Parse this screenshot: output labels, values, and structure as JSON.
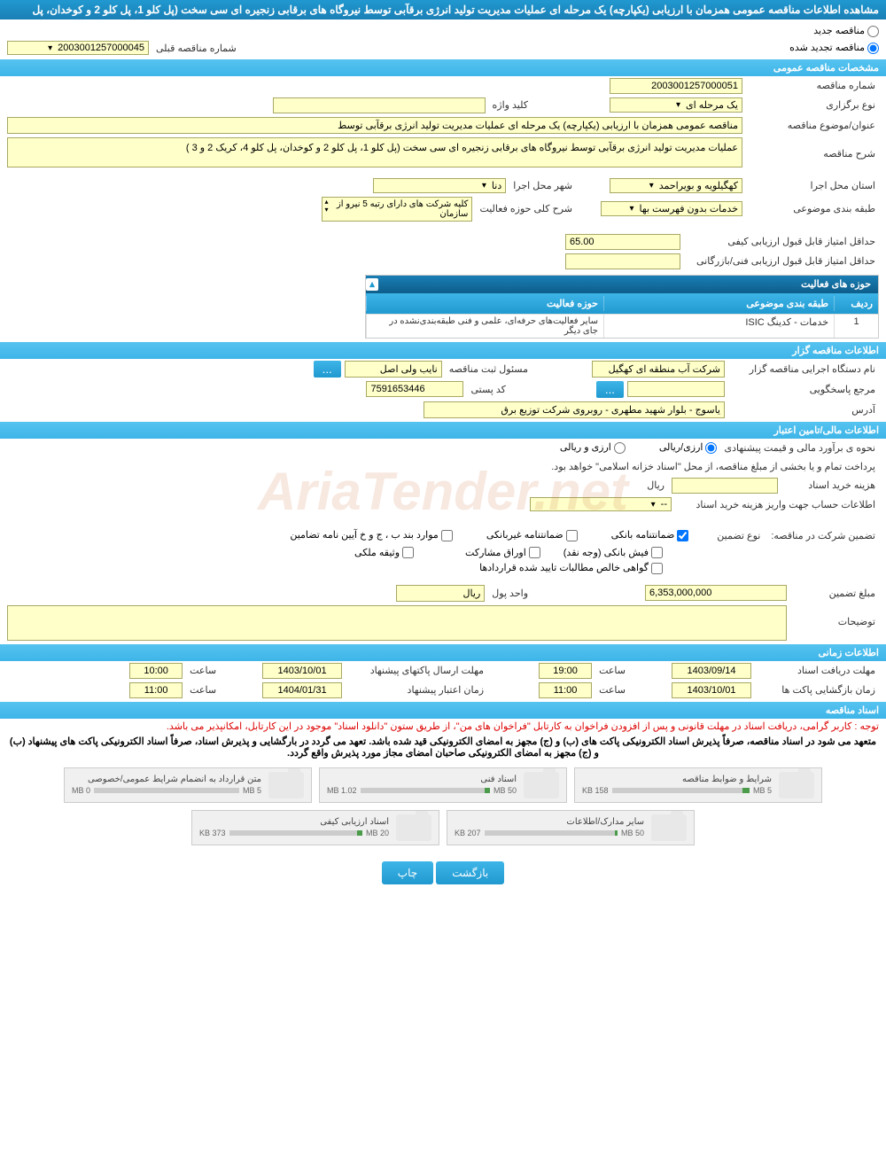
{
  "header": {
    "title": "مشاهده اطلاعات مناقصه عمومی همزمان با ارزیابی (یکپارچه) یک مرحله ای عملیات مدیریت تولید انرژی برقآبی توسط نیروگاه های برقابی زنجیره ای سی سخت (پل کلو 1، پل کلو 2 و کوخدان، پل"
  },
  "tender_type": {
    "new_label": "مناقصه جدید",
    "renewed_label": "مناقصه تجدید شده",
    "prev_number_label": "شماره مناقصه قبلی",
    "prev_number_value": "2003001257000045"
  },
  "sections": {
    "general": "مشخصات مناقصه عمومی",
    "activity": "حوزه های فعالیت",
    "organizer": "اطلاعات مناقصه گزار",
    "financial": "اطلاعات مالی/تامین اعتبار",
    "timing": "اطلاعات زمانی",
    "docs": "اسناد مناقصه"
  },
  "general": {
    "tender_no_label": "شماره مناقصه",
    "tender_no": "2003001257000051",
    "type_label": "نوع برگزاری",
    "type_value": "یک مرحله ای",
    "keyword_label": "کلید واژه",
    "keyword_value": "",
    "subject_label": "عنوان/موضوع مناقصه",
    "subject_value": "مناقصه عمومی همزمان با ارزیابی (یکپارچه) یک مرحله ای عملیات مدیریت تولید انرژی برقآبی توسط",
    "desc_label": "شرح مناقصه",
    "desc_value": "عملیات مدیریت تولید انرژی برقآبی توسط نیروگاه های برقابی زنجیره ای سی سخت (پل کلو 1، پل کلو 2 و کوخدان، پل کلو 4، کریک 2 و 3 )",
    "province_label": "استان محل اجرا",
    "province_value": "کهگیلویه و بویراحمد",
    "city_label": "شهر محل اجرا",
    "city_value": "دنا",
    "category_label": "طبقه بندی موضوعی",
    "category_value": "خدمات بدون فهرست بها",
    "scope_label": "شرح کلی حوزه فعالیت",
    "scope_value": "کلیه شرکت های دارای رتبه 5 نیرو از سازمان",
    "min_qual_label": "حداقل امتیاز قابل قبول ارزیابی کیفی",
    "min_qual_value": "65.00",
    "min_tech_label": "حداقل امتیاز قابل قبول ارزیابی فنی/بازرگانی",
    "min_tech_value": ""
  },
  "activity_table": {
    "columns": [
      "ردیف",
      "طبقه بندی موضوعی",
      "حوزه فعالیت"
    ],
    "col_widths": [
      "50px",
      "260px",
      "260px"
    ],
    "rows": [
      [
        "1",
        "خدمات - کدینگ ISIC",
        "سایر فعالیت‌های حرفه‌ای، علمی و فنی طبقه‌بندی‌نشده در جای دیگر"
      ]
    ]
  },
  "organizer": {
    "org_label": "نام دستگاه اجرایی مناقصه گزار",
    "org_value": "شرکت آب منطقه ای کهگیل",
    "reg_label": "مسئول ثبت مناقصه",
    "reg_value": "نایب ولی اصل",
    "contact_label": "مرجع پاسخگویی",
    "contact_value": "",
    "postal_label": "کد پستی",
    "postal_value": "7591653446",
    "address_label": "آدرس",
    "address_value": "یاسوج - بلوار شهید مطهری - روبروی شرکت توزیع برق"
  },
  "financial": {
    "estimate_label": "نحوه ی برآورد مالی و قیمت پیشنهادی",
    "opt_rial": "ارزی/ریالی",
    "opt_currency": "ارزی و ریالی",
    "payment_note": "پرداخت تمام و یا بخشی از مبلغ مناقصه، از محل \"اسناد خزانه اسلامی\" خواهد بود.",
    "doc_cost_label": "هزینه خرید اسناد",
    "doc_cost_value": "",
    "doc_cost_unit": "ریال",
    "account_label": "اطلاعات حساب جهت واریز هزینه خرید اسناد",
    "account_value": "--",
    "guarantee_title": "تضمین شرکت در مناقصه:",
    "guarantee_type_label": "نوع تضمین",
    "g_bank": "ضمانتنامه بانکی",
    "g_nonbank": "ضمانتنامه غیربانکی",
    "g_items": "موارد بند ب ، ج و خ آیین نامه تضامین",
    "g_cash": "فیش بانکی (وجه نقد)",
    "g_shares": "اوراق مشارکت",
    "g_property": "وثیقه ملکی",
    "g_claims": "گواهی خالص مطالبات تایید شده قراردادها",
    "amount_label": "مبلغ تضمین",
    "amount_value": "6,353,000,000",
    "unit_label": "واحد پول",
    "unit_value": "ریال",
    "notes_label": "توضیحات",
    "notes_value": ""
  },
  "timing": {
    "receive_label": "مهلت دریافت اسناد",
    "receive_date": "1403/09/14",
    "receive_time": "19:00",
    "send_label": "مهلت ارسال پاکتهای پیشنهاد",
    "send_date": "1403/10/01",
    "send_time": "10:00",
    "open_label": "زمان بازگشایی پاکت ها",
    "open_date": "1403/10/01",
    "open_time": "11:00",
    "valid_label": "زمان اعتبار پیشنهاد",
    "valid_date": "1404/01/31",
    "valid_time": "11:00",
    "time_label": "ساعت"
  },
  "docs": {
    "note1": "توجه : کاربر گرامی، دریافت اسناد در مهلت قانونی و پس از افزودن فراخوان به کارتابل \"فراخوان های من\"، از طریق ستون \"دانلود اسناد\" موجود در این کارتابل، امکانپذیر می باشد.",
    "note2": "متعهد می شود در اسناد مناقصه، صرفاً پذیرش اسناد الکترونیکی پاکت های (ب) و (ج) مجهز به امضای الکترونیکی قید شده باشد. تعهد می گردد در بارگشایی و پذیرش اسناد، صرفاً اسناد الکترونیکی پاکت های پیشنهاد (ب) و (ج) مجهز به امضای الکترونیکی صاحبان امضای مجاز مورد پذیرش واقع گردد.",
    "files": [
      {
        "title": "شرایط و ضوابط مناقصه",
        "size": "158 KB",
        "max": "5 MB",
        "percent": 5
      },
      {
        "title": "اسناد فنی",
        "size": "1.02 MB",
        "max": "50 MB",
        "percent": 4
      },
      {
        "title": "متن قرارداد به انضمام شرایط عمومی/خصوصی",
        "size": "0 MB",
        "max": "5 MB",
        "percent": 0
      },
      {
        "title": "سایر مدارک/اطلاعات",
        "size": "207 KB",
        "max": "50 MB",
        "percent": 2
      },
      {
        "title": "اسناد ارزیابی کیفی",
        "size": "373 KB",
        "max": "20 MB",
        "percent": 4
      }
    ]
  },
  "buttons": {
    "back": "بازگشت",
    "print": "چاپ",
    "dots": "..."
  },
  "colors": {
    "header_bg": "#2099d0",
    "section_bg": "#3eb5e8",
    "input_yellow": "#feffc9",
    "border_yellow": "#a8a864"
  }
}
